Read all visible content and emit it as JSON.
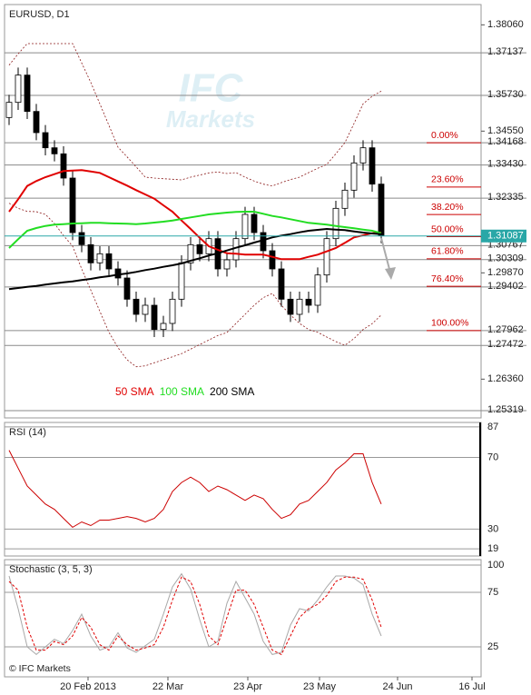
{
  "chart_data": [
    {
      "type": "candlestick",
      "title": "EURUSD, D1",
      "xlim": [
        -0.5,
        52
      ],
      "ylim": [
        1.2508,
        1.3873
      ],
      "yticks": [
        {
          "value": 1.3806,
          "label": "1.38060"
        },
        {
          "value": 1.3455,
          "label": "1.34550"
        },
        {
          "value": 1.2987,
          "label": "1.29870"
        },
        {
          "value": 1.2636,
          "label": "1.26360"
        }
      ],
      "levels": [
        {
          "value": 1.37137,
          "label": "1.37137"
        },
        {
          "value": 1.3573,
          "label": "1.35730"
        },
        {
          "value": 1.34168,
          "label": "1.34168"
        },
        {
          "value": 1.3343,
          "label": "1.33430"
        },
        {
          "value": 1.32335,
          "label": "1.32335"
        },
        {
          "value": 1.30767,
          "label": "1.30767"
        },
        {
          "value": 1.30309,
          "label": "1.30309"
        },
        {
          "value": 1.29402,
          "label": "1.29402"
        },
        {
          "value": 1.27962,
          "label": "1.27962"
        },
        {
          "value": 1.27472,
          "label": "1.27472"
        },
        {
          "value": 1.25319,
          "label": "1.25319"
        }
      ],
      "current": {
        "value": 1.31087,
        "label": "1.31087",
        "color": "#2aa7a7"
      },
      "fibonacci": {
        "from": 1.34168,
        "to": 1.27962,
        "color": "#cc0000",
        "levels": [
          {
            "value": 0,
            "label": "0.00%"
          },
          {
            "value": 23.6,
            "label": "23.60%"
          },
          {
            "value": 38.2,
            "label": "38.20%"
          },
          {
            "value": 50,
            "label": "50.00%"
          },
          {
            "value": 61.8,
            "label": "61.80%"
          },
          {
            "value": 76.4,
            "label": "76.40%"
          },
          {
            "value": 100,
            "label": "100.00%"
          }
        ]
      },
      "open": [
        1.35,
        1.355,
        1.364,
        1.352,
        1.345,
        1.34,
        1.338,
        1.33,
        1.312,
        1.308,
        1.302,
        1.305,
        1.3,
        1.297,
        1.29,
        1.285,
        1.288,
        1.28,
        1.282,
        1.29,
        1.302,
        1.308,
        1.305,
        1.31,
        1.3,
        1.303,
        1.31,
        1.318,
        1.312,
        1.306,
        1.3,
        1.29,
        1.285,
        1.29,
        1.288,
        1.298,
        1.31,
        1.32,
        1.326,
        1.335,
        1.34,
        1.328
      ],
      "high": [
        1.3575,
        1.3665,
        1.3665,
        1.3545,
        1.3475,
        1.3425,
        1.3405,
        1.3325,
        1.3145,
        1.3105,
        1.3075,
        1.3075,
        1.3025,
        1.2995,
        1.2925,
        1.2905,
        1.2905,
        1.2845,
        1.2925,
        1.3045,
        1.3105,
        1.3105,
        1.3125,
        1.3125,
        1.3055,
        1.3125,
        1.3205,
        1.3205,
        1.3145,
        1.3085,
        1.3025,
        1.2925,
        1.2925,
        1.2925,
        1.3005,
        1.3125,
        1.3225,
        1.3285,
        1.3375,
        1.3425,
        1.3425,
        1.3305
      ],
      "low": [
        1.3475,
        1.3525,
        1.3495,
        1.3425,
        1.3375,
        1.3355,
        1.3275,
        1.3095,
        1.3055,
        1.2995,
        1.2995,
        1.2975,
        1.2945,
        1.2875,
        1.2825,
        1.2825,
        1.2775,
        1.2775,
        1.2795,
        1.2875,
        1.2995,
        1.3025,
        1.3025,
        1.2975,
        1.2975,
        1.3005,
        1.3075,
        1.3095,
        1.3035,
        1.2975,
        1.2875,
        1.2825,
        1.2825,
        1.2855,
        1.2855,
        1.2955,
        1.3075,
        1.3175,
        1.3235,
        1.3325,
        1.3255,
        1.3085
      ],
      "close": [
        1.355,
        1.364,
        1.352,
        1.345,
        1.34,
        1.338,
        1.33,
        1.312,
        1.308,
        1.302,
        1.305,
        1.3,
        1.297,
        1.29,
        1.285,
        1.288,
        1.28,
        1.282,
        1.29,
        1.302,
        1.308,
        1.305,
        1.31,
        1.3,
        1.303,
        1.31,
        1.318,
        1.312,
        1.306,
        1.3,
        1.29,
        1.285,
        1.29,
        1.288,
        1.298,
        1.31,
        1.32,
        1.326,
        1.335,
        1.34,
        1.328,
        1.311
      ],
      "series": [
        {
          "name": "50 SMA",
          "color": "#e00000",
          "values": [
            1.3189,
            1.323,
            1.3274,
            1.329,
            1.3303,
            1.3313,
            1.3323,
            1.3325,
            1.3326,
            1.3322,
            1.3317,
            1.3303,
            1.3289,
            1.3275,
            1.326,
            1.3246,
            1.3232,
            1.321,
            1.3189,
            1.316,
            1.3132,
            1.3103,
            1.3075,
            1.3063,
            1.3052,
            1.305,
            1.3047,
            1.3047,
            1.3047,
            1.304,
            1.3032,
            1.3032,
            1.3032,
            1.304,
            1.3047,
            1.3058,
            1.3069,
            1.3086,
            1.3104,
            1.3111,
            1.3118,
            1.312
          ]
        },
        {
          "name": "100 SMA",
          "color": "#22dd22",
          "values": [
            1.3069,
            1.3098,
            1.3126,
            1.3135,
            1.3142,
            1.3146,
            1.3148,
            1.315,
            1.3151,
            1.3152,
            1.3152,
            1.3151,
            1.315,
            1.3149,
            1.3148,
            1.315,
            1.3153,
            1.3156,
            1.316,
            1.3165,
            1.317,
            1.3175,
            1.318,
            1.3183,
            1.3186,
            1.3188,
            1.3189,
            1.3189,
            1.3182,
            1.3175,
            1.317,
            1.3164,
            1.3158,
            1.3152,
            1.3149,
            1.3146,
            1.3142,
            1.3138,
            1.3134,
            1.313,
            1.3126,
            1.3118
          ]
        },
        {
          "name": "200 SMA",
          "color": "#000000",
          "values": [
            1.2933,
            1.2937,
            1.2941,
            1.2944,
            1.2948,
            1.2952,
            1.2956,
            1.2959,
            1.2963,
            1.2967,
            1.2972,
            1.2976,
            1.2981,
            1.2985,
            1.299,
            1.2996,
            1.3001,
            1.3007,
            1.3012,
            1.3018,
            1.3027,
            1.3035,
            1.3044,
            1.3052,
            1.3061,
            1.307,
            1.3078,
            1.3087,
            1.3095,
            1.3104,
            1.311,
            1.3115,
            1.3121,
            1.3126,
            1.3129,
            1.3132,
            1.313,
            1.3128,
            1.3124,
            1.312,
            1.3117,
            1.3115
          ]
        }
      ],
      "bands": {
        "color": "#8b1a1a",
        "upper": [
          1.3673,
          1.371,
          1.3744,
          1.3744,
          1.3744,
          1.3744,
          1.3744,
          1.3744,
          1.368,
          1.3616,
          1.3545,
          1.3474,
          1.3402,
          1.337,
          1.3337,
          1.3303,
          1.33,
          1.3298,
          1.3296,
          1.3294,
          1.3303,
          1.331,
          1.3317,
          1.332,
          1.3315,
          1.3318,
          1.3303,
          1.329,
          1.328,
          1.3274,
          1.3285,
          1.3295,
          1.3303,
          1.3318,
          1.3332,
          1.3345,
          1.338,
          1.3417,
          1.348,
          1.3545,
          1.357,
          1.3587
        ],
        "lower": [
          1.3217,
          1.32,
          1.319,
          1.3189,
          1.318,
          1.315,
          1.311,
          1.3075,
          1.3,
          1.293,
          1.286,
          1.2791,
          1.274,
          1.27,
          1.2677,
          1.268,
          1.269,
          1.27,
          1.271,
          1.272,
          1.2735,
          1.275,
          1.2765,
          1.278,
          1.279,
          1.282,
          1.285,
          1.288,
          1.2905,
          1.2919,
          1.288,
          1.2848,
          1.282,
          1.28,
          1.2791,
          1.2775,
          1.276,
          1.2748,
          1.277,
          1.28,
          1.2819,
          1.2848
        ]
      },
      "watermark": [
        "IFC",
        "Markets"
      ]
    },
    {
      "type": "line",
      "title": "RSI (14)",
      "xlim": [
        -0.5,
        52
      ],
      "ylim": [
        15,
        89.5
      ],
      "yticks": [
        87,
        70,
        30,
        19
      ],
      "grid": true,
      "series": [
        {
          "color": "#cc0000",
          "values": [
            74,
            64,
            54,
            49,
            44,
            41,
            36,
            31,
            34,
            32,
            35,
            35,
            36,
            37,
            36,
            34,
            36,
            41,
            51,
            56,
            59,
            56,
            51,
            54,
            52,
            49,
            46,
            49,
            47,
            41,
            36,
            38,
            44,
            46,
            51,
            56,
            63,
            67,
            72,
            72,
            56,
            44
          ]
        }
      ]
    },
    {
      "type": "line",
      "title": "Stochastic (3, 5, 3)",
      "copyright": "© IFC Markets",
      "xlim": [
        -0.5,
        52
      ],
      "ylim": [
        -2.5,
        105
      ],
      "yticks": [
        100,
        75,
        25
      ],
      "grid": true,
      "xticks": [
        {
          "value": 8.7,
          "label": "20 Feb 2013"
        },
        {
          "value": 17.5,
          "label": "22 Mar"
        },
        {
          "value": 26.3,
          "label": "23 Apr"
        },
        {
          "value": 34.2,
          "label": "23 May"
        },
        {
          "value": 42.8,
          "label": "24 Jun"
        },
        {
          "value": 51,
          "label": "16 Jul"
        }
      ],
      "series": [
        {
          "color": "#a8a8a8",
          "values": [
            90,
            60,
            25,
            18,
            25,
            32,
            28,
            40,
            55,
            35,
            22,
            25,
            38,
            24,
            20,
            26,
            32,
            55,
            80,
            92,
            78,
            50,
            25,
            30,
            65,
            85,
            70,
            55,
            30,
            18,
            20,
            45,
            60,
            58,
            68,
            80,
            90,
            90,
            88,
            82,
            55,
            35
          ]
        },
        {
          "color": "#e00000",
          "dashed": true,
          "values": [
            85,
            77,
            43,
            22,
            22,
            30,
            27,
            35,
            52,
            43,
            27,
            22,
            35,
            27,
            22,
            24,
            27,
            43,
            68,
            89,
            85,
            64,
            35,
            27,
            52,
            77,
            77,
            64,
            43,
            22,
            18,
            35,
            52,
            60,
            64,
            72,
            85,
            89,
            89,
            87,
            68,
            43
          ]
        }
      ]
    }
  ]
}
